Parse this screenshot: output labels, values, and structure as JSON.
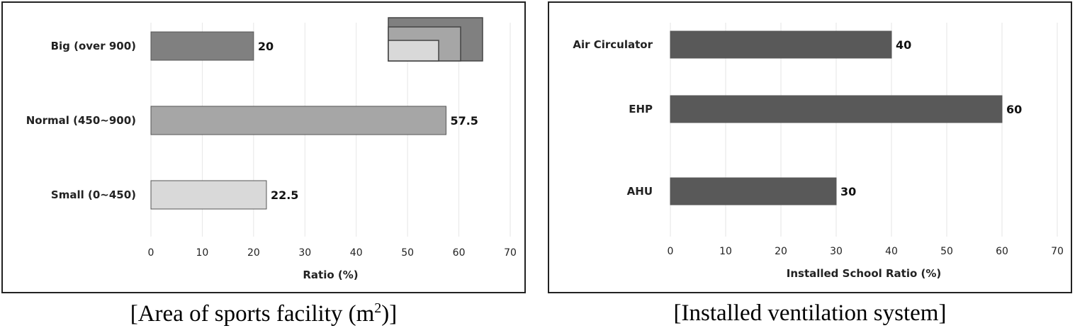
{
  "chart_data": [
    {
      "type": "bar",
      "orientation": "horizontal",
      "categories": [
        "Big (over 900)",
        "Normal (450~900)",
        "Small (0~450)"
      ],
      "values": [
        20,
        57.5,
        22.5
      ],
      "value_labels": [
        "20",
        "57.5",
        "22.5"
      ],
      "bar_colors": [
        "#808080",
        "#a6a6a6",
        "#d9d9d9"
      ],
      "xlabel": "Ratio (%)",
      "xlim": [
        0,
        70
      ],
      "xticks": [
        "0",
        "10",
        "20",
        "30",
        "40",
        "50",
        "60",
        "70"
      ],
      "grid": "vertical",
      "caption_main": "[Area of sports facility (m",
      "caption_sup": "2",
      "caption_end": ")]"
    },
    {
      "type": "bar",
      "orientation": "horizontal",
      "categories": [
        "Air Circulator",
        "EHP",
        "AHU"
      ],
      "values": [
        40,
        60,
        30
      ],
      "value_labels": [
        "40",
        "60",
        "30"
      ],
      "bar_colors": [
        "#595959",
        "#595959",
        "#595959"
      ],
      "xlabel": "Installed School Ratio (%)",
      "xlim": [
        0,
        70
      ],
      "xticks": [
        "0",
        "10",
        "20",
        "30",
        "40",
        "50",
        "60",
        "70"
      ],
      "grid": "vertical",
      "caption": "[Installed ventilation system]"
    }
  ]
}
